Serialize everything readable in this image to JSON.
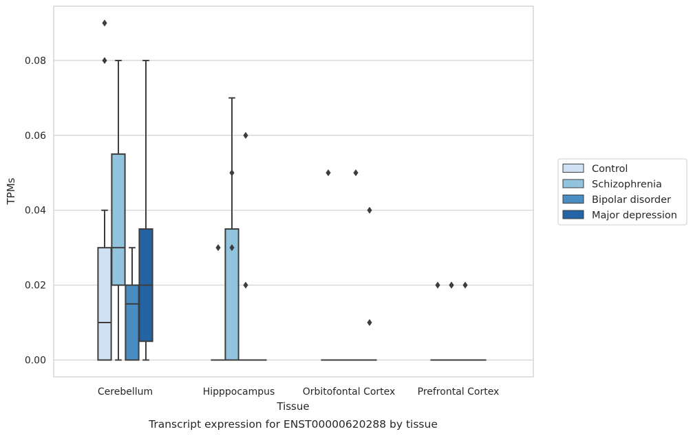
{
  "caption": "Transcript expression for ENST00000620288 by tissue",
  "chart_data": {
    "type": "box",
    "xlabel": "Tissue",
    "ylabel": "TPMs",
    "ylim": [
      -0.0045,
      0.095
    ],
    "yticks": [
      "0.00",
      "0.02",
      "0.04",
      "0.06",
      "0.08"
    ],
    "ytick_values": [
      0,
      0.02,
      0.04,
      0.06,
      0.08
    ],
    "grid": "horizontal",
    "legend_position": "right",
    "categories": [
      "Cerebellum",
      "Hipppocampus",
      "Orbitofontal Cortex",
      "Prefrontal Cortex"
    ],
    "series": [
      {
        "name": "Control",
        "color": "#cfe1f2",
        "boxes": [
          {
            "q1": 0,
            "median": 0.01,
            "q3": 0.03,
            "whisker_low": 0,
            "whisker_high": 0.04,
            "outliers": [
              0.09,
              0.08
            ]
          },
          {
            "q1": 0,
            "median": 0,
            "q3": 0,
            "whisker_low": 0,
            "whisker_high": 0,
            "outliers": [
              0.03
            ]
          },
          {
            "q1": 0,
            "median": 0,
            "q3": 0,
            "whisker_low": 0,
            "whisker_high": 0,
            "outliers": [
              0.05
            ]
          },
          {
            "q1": 0,
            "median": 0,
            "q3": 0,
            "whisker_low": 0,
            "whisker_high": 0,
            "outliers": [
              0.02
            ]
          }
        ]
      },
      {
        "name": "Schizophrenia",
        "color": "#93c4de",
        "boxes": [
          {
            "q1": 0.02,
            "median": 0.03,
            "q3": 0.055,
            "whisker_low": 0,
            "whisker_high": 0.08,
            "outliers": []
          },
          {
            "q1": 0,
            "median": 0,
            "q3": 0.035,
            "whisker_low": 0,
            "whisker_high": 0.07,
            "outliers": [
              0.05,
              0.03
            ]
          },
          {
            "q1": 0,
            "median": 0,
            "q3": 0,
            "whisker_low": 0,
            "whisker_high": 0,
            "outliers": []
          },
          {
            "q1": 0,
            "median": 0,
            "q3": 0,
            "whisker_low": 0,
            "whisker_high": 0,
            "outliers": [
              0.02,
              0.02
            ]
          }
        ]
      },
      {
        "name": "Bipolar disorder",
        "color": "#4a8dc2",
        "boxes": [
          {
            "q1": 0,
            "median": 0.015,
            "q3": 0.02,
            "whisker_low": 0,
            "whisker_high": 0.03,
            "outliers": []
          },
          {
            "q1": 0,
            "median": 0,
            "q3": 0,
            "whisker_low": 0,
            "whisker_high": 0,
            "outliers": [
              0.06,
              0.02
            ]
          },
          {
            "q1": 0,
            "median": 0,
            "q3": 0,
            "whisker_low": 0,
            "whisker_high": 0,
            "outliers": [
              0.05
            ]
          },
          {
            "q1": 0,
            "median": 0,
            "q3": 0,
            "whisker_low": 0,
            "whisker_high": 0,
            "outliers": [
              0.02
            ]
          }
        ]
      },
      {
        "name": "Major depression",
        "color": "#2464a4",
        "boxes": [
          {
            "q1": 0.005,
            "median": 0.02,
            "q3": 0.035,
            "whisker_low": 0,
            "whisker_high": 0.08,
            "outliers": []
          },
          {
            "q1": 0,
            "median": 0,
            "q3": 0,
            "whisker_low": 0,
            "whisker_high": 0,
            "outliers": []
          },
          {
            "q1": 0,
            "median": 0,
            "q3": 0,
            "whisker_low": 0,
            "whisker_high": 0,
            "outliers": [
              0.04,
              0.01
            ]
          },
          {
            "q1": 0,
            "median": 0,
            "q3": 0,
            "whisker_low": 0,
            "whisker_high": 0,
            "outliers": []
          }
        ]
      }
    ]
  }
}
